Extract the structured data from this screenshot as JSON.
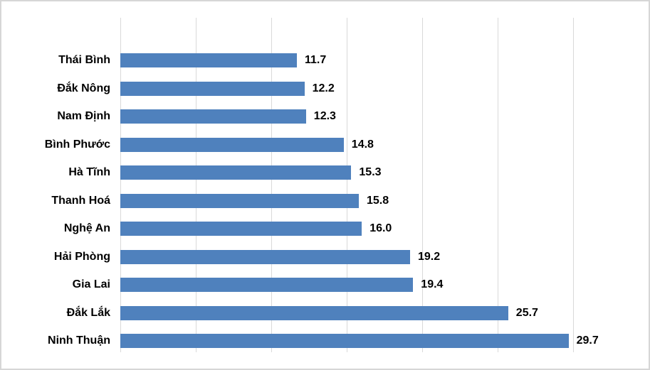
{
  "chart_data": {
    "type": "bar",
    "orientation": "horizontal",
    "title": "",
    "xlabel": "",
    "ylabel": "",
    "categories": [
      "Thái Bình",
      "Đắk Nông",
      "Nam Định",
      "Bình Phước",
      "Hà Tĩnh",
      "Thanh Hoá",
      "Nghệ An",
      "Hải Phòng",
      "Gia Lai",
      "Đắk Lắk",
      "Ninh Thuận"
    ],
    "values": [
      11.7,
      12.2,
      12.3,
      14.8,
      15.3,
      15.8,
      16.0,
      19.2,
      19.4,
      25.7,
      29.7
    ],
    "value_labels": [
      "11.7",
      "12.2",
      "12.3",
      "14.8",
      "15.3",
      "15.8",
      "16.0",
      "19.2",
      "19.4",
      "25.7",
      "29.7"
    ],
    "xlim": [
      0,
      30
    ],
    "gridline_ticks": [
      0,
      5,
      10,
      15,
      20,
      25,
      30
    ],
    "grid": true,
    "legend": false,
    "bar_color": "#4F81BD",
    "gridline_color": "#D9D9D9",
    "text_color": "#000000",
    "background_color": "#FFFFFF",
    "border_color": "#D6D6D6"
  }
}
